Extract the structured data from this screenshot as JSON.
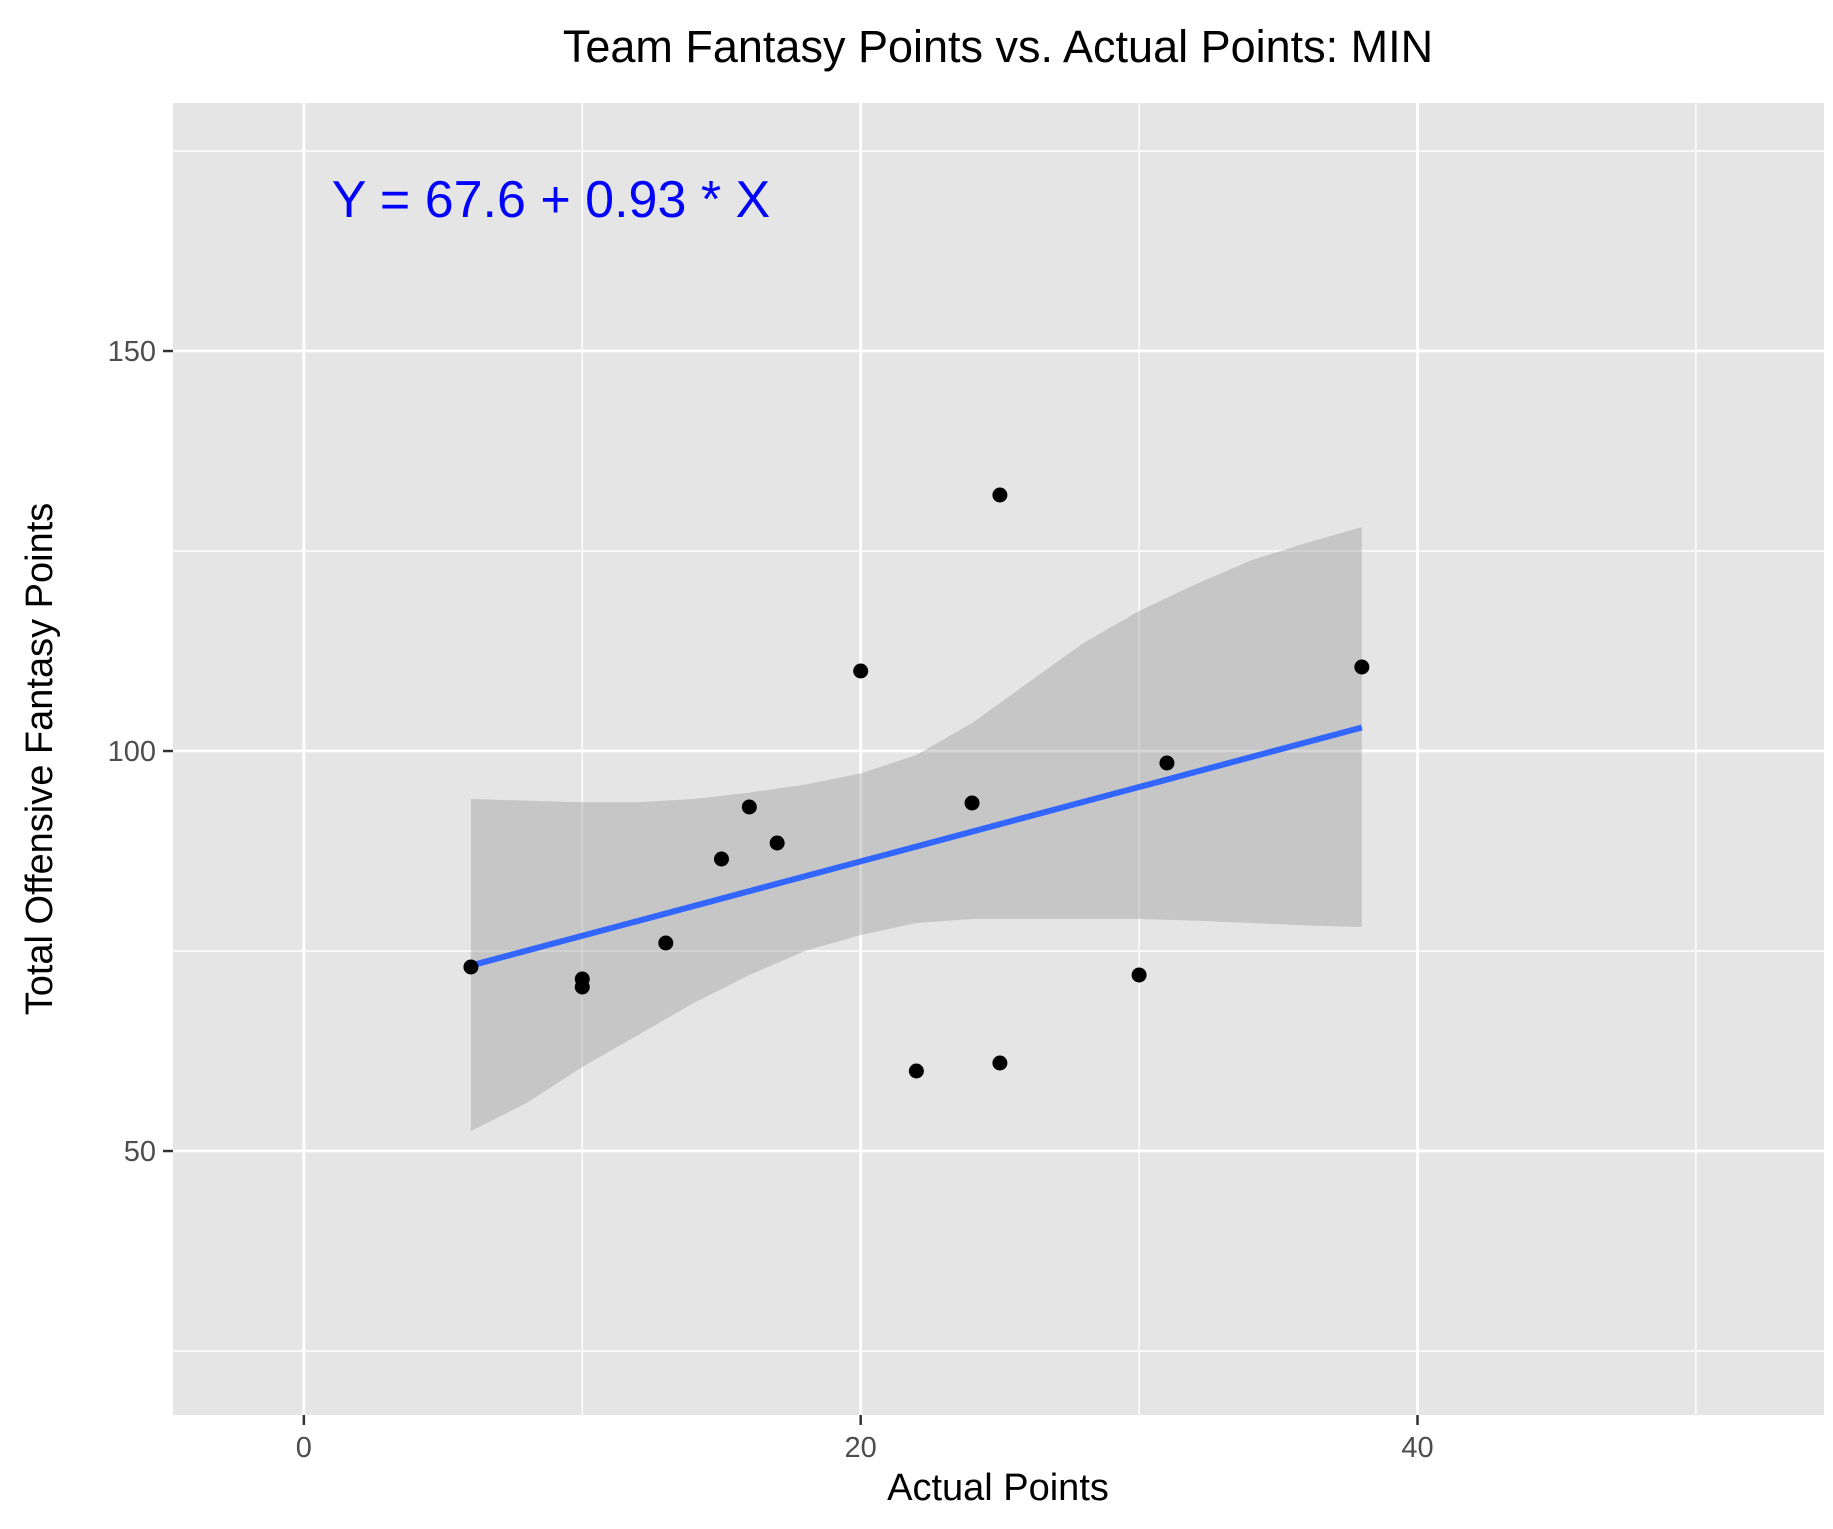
{
  "chart_data": {
    "type": "scatter",
    "title": "Team Fantasy Points vs. Actual Points: MIN",
    "xlabel": "Actual Points",
    "ylabel": "Total Offensive Fantasy Points",
    "xlim": [
      -4.7,
      54.6
    ],
    "ylim": [
      17,
      181
    ],
    "x_ticks": [
      0,
      20,
      40
    ],
    "x_tick_labels": [
      "0",
      "20",
      "40"
    ],
    "x_minor_ticks": [
      10,
      30,
      50
    ],
    "y_ticks": [
      50,
      100,
      150
    ],
    "y_tick_labels": [
      "50",
      "100",
      "150"
    ],
    "y_minor_ticks": [
      25,
      75,
      125,
      175
    ],
    "grid": true,
    "points": [
      {
        "x": 6,
        "y": 73
      },
      {
        "x": 10,
        "y": 71.5
      },
      {
        "x": 10,
        "y": 70.5
      },
      {
        "x": 13,
        "y": 76
      },
      {
        "x": 15,
        "y": 86.5
      },
      {
        "x": 16,
        "y": 93
      },
      {
        "x": 17,
        "y": 88.5
      },
      {
        "x": 20,
        "y": 110
      },
      {
        "x": 22,
        "y": 60
      },
      {
        "x": 24,
        "y": 93.5
      },
      {
        "x": 25,
        "y": 132
      },
      {
        "x": 25,
        "y": 61
      },
      {
        "x": 30,
        "y": 72
      },
      {
        "x": 31,
        "y": 98.5
      },
      {
        "x": 38,
        "y": 110.5
      }
    ],
    "regression": {
      "intercept": 67.6,
      "slope": 0.93,
      "x_range": [
        6,
        38
      ]
    },
    "confidence_band": {
      "x": [
        6,
        8,
        10,
        12,
        14,
        16,
        18,
        20,
        22,
        24,
        26,
        28,
        30,
        32,
        34,
        36,
        38
      ],
      "upper": [
        94,
        93.8,
        93.6,
        93.6,
        94.0,
        94.8,
        95.8,
        97.2,
        99.5,
        103.5,
        108.5,
        113.5,
        117.5,
        120.8,
        123.8,
        126,
        128
      ],
      "lower": [
        52.5,
        56,
        60.5,
        64.5,
        68.5,
        72,
        75,
        77,
        78.5,
        79,
        79,
        79,
        79,
        78.8,
        78.5,
        78.2,
        78
      ]
    },
    "annotation": {
      "text": "Y = 67.6 + 0.93 * X",
      "x": 1,
      "y": 169,
      "color": "#0000ff"
    },
    "colors": {
      "panel_background": "#e5e5e5",
      "grid": "#ffffff",
      "points": "#000000",
      "line": "#3366ff",
      "band": "#999999"
    }
  }
}
